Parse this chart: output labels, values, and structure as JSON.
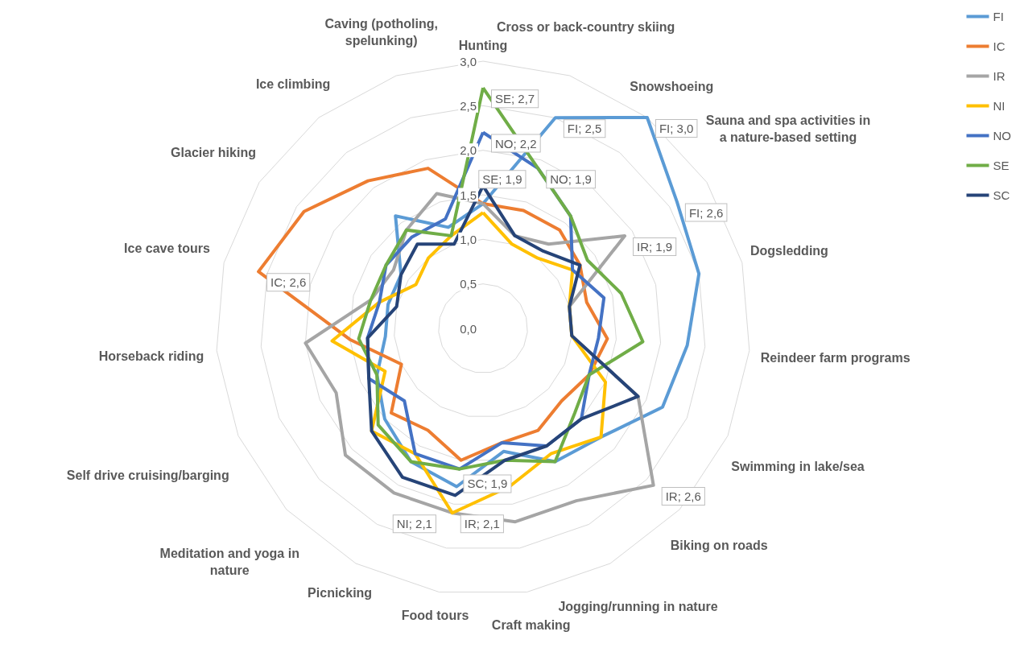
{
  "chart_data": {
    "type": "radar",
    "categories": [
      "Hunting",
      "Cross or back-country skiing",
      "Snowshoeing",
      "Sauna and spa activities in a nature-based setting",
      "Dogsledding",
      "Reindeer farm programs",
      "Swimming in lake/sea",
      "Biking on roads",
      "Jogging/running in nature",
      "Craft making",
      "Food tours",
      "Picnicking",
      "Meditation and yoga in nature",
      "Self drive cruising/barging",
      "Horseback riding",
      "Ice cave tours",
      "Glacier hiking",
      "Ice climbing",
      "Caving (potholing, spelunking)"
    ],
    "ylim": [
      0,
      3
    ],
    "yticks": [
      {
        "value": 0,
        "label": "0,0"
      },
      {
        "value": 0.5,
        "label": "0,5"
      },
      {
        "value": 1,
        "label": "1,0"
      },
      {
        "value": 1.5,
        "label": "1,5"
      },
      {
        "value": 2,
        "label": "2,0"
      },
      {
        "value": 2.5,
        "label": "2,5"
      },
      {
        "value": 3,
        "label": "3,0"
      }
    ],
    "grid": true,
    "legend": "top right",
    "marker": "none",
    "line_style": "solid",
    "series": [
      {
        "name": "FI",
        "color": "#5b9bd5",
        "values": [
          1.4,
          2.5,
          3.0,
          2.6,
          2.5,
          2.3,
          2.2,
          1.8,
          1.7,
          1.4,
          1.8,
          1.7,
          1.5,
          1.3,
          1.1,
          1.1,
          1.1,
          1.6,
          1.2
        ],
        "value_labels": [
          null,
          "FI; 2,5",
          "FI; 3,0",
          "FI; 2,6",
          null,
          null,
          null,
          null,
          null,
          null,
          null,
          null,
          null,
          null,
          null,
          null,
          null,
          null,
          null
        ]
      },
      {
        "name": "IC",
        "color": "#ed7d31",
        "values": [
          1.4,
          1.4,
          1.4,
          1.3,
          1.2,
          1.4,
          1.3,
          1.2,
          1.3,
          1.3,
          1.5,
          1.3,
          1.4,
          1.0,
          1.5,
          2.6,
          2.4,
          2.1,
          1.9
        ],
        "value_labels": [
          null,
          null,
          null,
          null,
          null,
          null,
          null,
          null,
          null,
          null,
          null,
          null,
          null,
          null,
          null,
          "IC; 2,6",
          null,
          null,
          null
        ]
      },
      {
        "name": "IR",
        "color": "#a5a5a5",
        "values": [
          1.4,
          1.1,
          1.2,
          1.9,
          1.0,
          1.0,
          1.9,
          2.6,
          2.2,
          2.2,
          2.1,
          2.1,
          2.1,
          1.8,
          2.0,
          1.3,
          1.2,
          1.4,
          1.6
        ],
        "value_labels": [
          null,
          null,
          null,
          "IR; 1,9",
          null,
          null,
          null,
          "IR; 2,6",
          null,
          null,
          "IR; 2,1",
          null,
          null,
          null,
          null,
          null,
          null,
          null,
          null
        ]
      },
      {
        "name": "NI",
        "color": "#ffc000",
        "values": [
          1.3,
          1.0,
          1.0,
          1.2,
          1.0,
          1.0,
          1.5,
          1.8,
          1.6,
          1.8,
          2.1,
          1.6,
          1.7,
          1.2,
          1.7,
          1.2,
          0.9,
          1.0,
          1.1
        ],
        "value_labels": [
          null,
          null,
          null,
          null,
          null,
          null,
          null,
          null,
          null,
          null,
          "NI; 2,1",
          null,
          null,
          null,
          null,
          null,
          null,
          null,
          null
        ]
      },
      {
        "name": "NO",
        "color": "#4472c4",
        "values": [
          2.2,
          1.9,
          1.6,
          1.2,
          1.4,
          1.3,
          1.3,
          1.5,
          1.5,
          1.3,
          1.6,
          1.6,
          1.2,
          1.4,
          1.3,
          1.2,
          1.3,
          1.3,
          1.3
        ],
        "value_labels": [
          "NO; 2,2",
          "NO; 1,9",
          null,
          null,
          null,
          null,
          null,
          null,
          null,
          null,
          null,
          null,
          null,
          null,
          null,
          null,
          null,
          null,
          null
        ]
      },
      {
        "name": "SE",
        "color": "#70ad47",
        "values": [
          2.7,
          1.9,
          1.6,
          1.4,
          1.6,
          1.8,
          1.3,
          1.4,
          1.7,
          1.5,
          1.6,
          1.7,
          1.6,
          1.3,
          1.4,
          1.3,
          1.3,
          1.4,
          1.1
        ],
        "value_labels": [
          "SE; 2,7",
          "SE; 1,9",
          null,
          null,
          null,
          null,
          null,
          null,
          null,
          null,
          null,
          null,
          null,
          null,
          null,
          null,
          null,
          null,
          null
        ]
      },
      {
        "name": "SC",
        "color": "#264478",
        "values": [
          1.6,
          1.1,
          1.1,
          1.3,
          1.0,
          1.0,
          1.9,
          1.5,
          1.5,
          1.5,
          1.9,
          1.9,
          1.7,
          1.4,
          1.3,
          1.0,
          1.1,
          1.2,
          1.0
        ],
        "value_labels": [
          null,
          null,
          null,
          null,
          null,
          null,
          null,
          null,
          null,
          null,
          "SC; 1,9",
          null,
          null,
          null,
          null,
          null,
          null,
          null,
          null
        ]
      }
    ]
  }
}
